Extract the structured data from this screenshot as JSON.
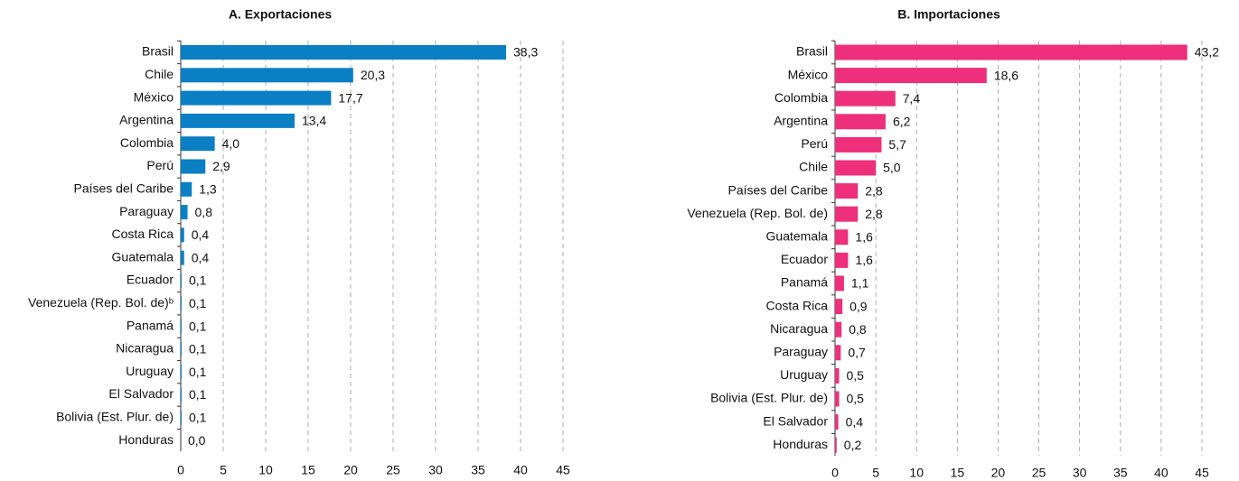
{
  "chart_data": [
    {
      "type": "barh",
      "title": "A. Exportaciones",
      "categories": [
        "Brasil",
        "Chile",
        "México",
        "Argentina",
        "Colombia",
        "Perú",
        "Países del Caribe",
        "Paraguay",
        "Costa Rica",
        "Guatemala",
        "Ecuador",
        "Venezuela (Rep. Bol. de)ᵇ",
        "Panamá",
        "Nicaragua",
        "Uruguay",
        "El Salvador",
        "Bolivia (Est. Plur. de)",
        "Honduras"
      ],
      "values": [
        38.3,
        20.3,
        17.7,
        13.4,
        4.0,
        2.9,
        1.3,
        0.8,
        0.4,
        0.4,
        0.1,
        0.1,
        0.1,
        0.1,
        0.1,
        0.1,
        0.1,
        0.0
      ],
      "value_labels": [
        "38,3",
        "20,3",
        "17,7",
        "13,4",
        "4,0",
        "2,9",
        "1,3",
        "0,8",
        "0,4",
        "0,4",
        "0,1",
        "0,1",
        "0,1",
        "0,1",
        "0,1",
        "0,1",
        "0,1",
        "0,0"
      ],
      "color": "#0a7fc4",
      "xlim": [
        0,
        45
      ],
      "xticks": [
        0,
        5,
        10,
        15,
        20,
        25,
        30,
        35,
        40,
        45
      ],
      "grid": true
    },
    {
      "type": "barh",
      "title": "B. Importaciones",
      "categories": [
        "Brasil",
        "México",
        "Colombia",
        "Argentina",
        "Perú",
        "Chile",
        "Países del Caribe",
        "Venezuela (Rep. Bol. de)",
        "Guatemala",
        "Ecuador",
        "Panamá",
        "Costa Rica",
        "Nicaragua",
        "Paraguay",
        "Uruguay",
        "Bolivia (Est. Plur. de)",
        "El Salvador",
        "Honduras"
      ],
      "values": [
        43.2,
        18.6,
        7.4,
        6.2,
        5.7,
        5.0,
        2.8,
        2.8,
        1.6,
        1.6,
        1.1,
        0.9,
        0.8,
        0.7,
        0.5,
        0.5,
        0.4,
        0.2
      ],
      "value_labels": [
        "43,2",
        "18,6",
        "7,4",
        "6,2",
        "5,7",
        "5,0",
        "2,8",
        "2,8",
        "1,6",
        "1,6",
        "1,1",
        "0,9",
        "0,8",
        "0,7",
        "0,5",
        "0,5",
        "0,4",
        "0,2"
      ],
      "color": "#ee2f7c",
      "xlim": [
        0,
        45
      ],
      "xticks": [
        0,
        5,
        10,
        15,
        20,
        25,
        30,
        35,
        40,
        45
      ],
      "grid": true
    }
  ]
}
